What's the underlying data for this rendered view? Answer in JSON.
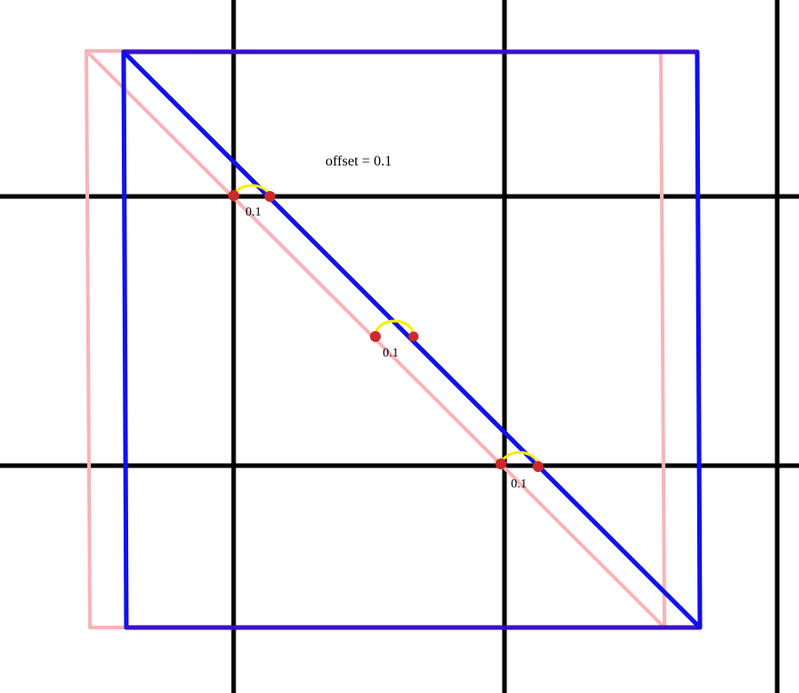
{
  "title": "offset = 0.1",
  "offset_value": 0.1,
  "offset_labels": [
    "0.1",
    "0.1",
    "0.1"
  ],
  "colors": {
    "background": "#ffffff",
    "grid": "#000000",
    "original_shape": "#f8b4b8",
    "offset_shape": "#1010ee",
    "offset_shape_top_edge": "#3a10c8",
    "offset_arc": "#f2f200",
    "marker_dot": "#cc2a2a"
  }
}
